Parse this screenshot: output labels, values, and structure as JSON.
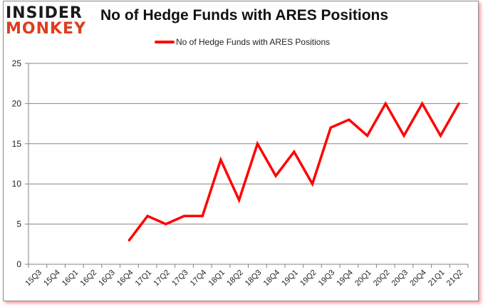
{
  "logo": {
    "line1": "INSIDER",
    "line2": "MONKEY"
  },
  "colors": {
    "series": "#ff0000",
    "grid": "#868686",
    "axis_text": "#222222",
    "logo_red": "#e03c1c"
  },
  "chart_data": {
    "type": "line",
    "title": "No of Hedge Funds with ARES Positions",
    "xlabel": "",
    "ylabel": "",
    "ylim": [
      0,
      25
    ],
    "yticks": [
      0,
      5,
      10,
      15,
      20,
      25
    ],
    "grid": true,
    "legend_position": "top",
    "categories": [
      "15Q3",
      "15Q4",
      "16Q1",
      "16Q2",
      "16Q3",
      "16Q4",
      "17Q1",
      "17Q2",
      "17Q3",
      "17Q4",
      "18Q1",
      "18Q2",
      "18Q3",
      "18Q4",
      "19Q1",
      "19Q2",
      "19Q3",
      "19Q4",
      "20Q1",
      "20Q2",
      "20Q3",
      "20Q4",
      "21Q1",
      "21Q2"
    ],
    "series": [
      {
        "name": "No of Hedge Funds with ARES Positions",
        "values": [
          null,
          null,
          null,
          null,
          null,
          3,
          6,
          5,
          6,
          6,
          13,
          8,
          15,
          11,
          14,
          10,
          17,
          18,
          16,
          20,
          16,
          20,
          16,
          20
        ]
      }
    ]
  }
}
